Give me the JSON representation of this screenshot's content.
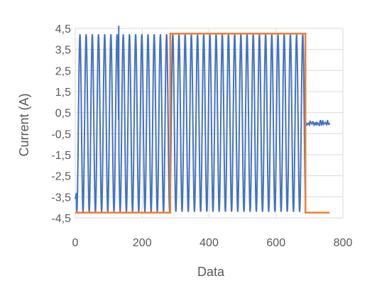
{
  "chart_data": {
    "type": "line",
    "title": "",
    "xlabel": "Data",
    "ylabel": "Current (A)",
    "xlim": [
      0,
      800
    ],
    "ylim": [
      -4.5,
      4.5
    ],
    "x_ticks": [
      0,
      200,
      400,
      600,
      800
    ],
    "x_tick_labels": [
      "0",
      "200",
      "400",
      "600",
      "800"
    ],
    "y_ticks": [
      4.5,
      3.5,
      2.5,
      1.5,
      0.5,
      -0.5,
      -1.5,
      -2.5,
      -3.5,
      -4.5
    ],
    "y_tick_labels": [
      "4,5",
      "3,5",
      "2,5",
      "1,5",
      "0,5",
      "-0,5",
      "-1,5",
      "-2,5",
      "-3,5",
      "-4,5"
    ],
    "grid": true,
    "legend": "none",
    "series": [
      {
        "color": "#4472C4",
        "description": "oscillating current",
        "oscillation": {
          "x_start": 0,
          "x_end": 688,
          "period": 18.5,
          "amplitude_max": 4.2,
          "amplitude_min": -4.2,
          "first_peak_x": 14,
          "peak_x_max": 130,
          "peak_value_max": 4.6,
          "tail_x_end": 760,
          "tail_value": 0.0
        }
      },
      {
        "color": "#ED7D31",
        "description": "square reference",
        "x": [
          0,
          284,
          284,
          688,
          688,
          760
        ],
        "y": [
          -4.25,
          -4.25,
          4.25,
          4.25,
          -4.25,
          -4.25
        ]
      }
    ]
  }
}
